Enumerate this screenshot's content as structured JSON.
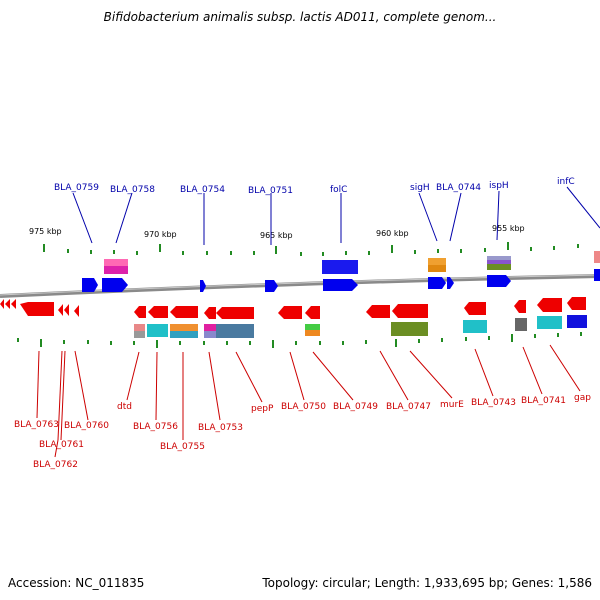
{
  "title": "Bifidobacterium animalis subsp. lactis AD011, complete genom...",
  "footer": {
    "accession": "Accession: NC_011835",
    "summary": "Topology: circular; Length: 1,933,695 bp; Genes: 1,586"
  },
  "colors": {
    "forward_gene": "#0000ee",
    "reverse_gene": "#ee0000",
    "forward_label": "#0000aa",
    "reverse_label": "#cc0000",
    "backbone": "#888888",
    "tick": "#228b22"
  },
  "scale_labels": [
    "975 kbp",
    "970 kbp",
    "965 kbp",
    "960 kbp",
    "955 kbp"
  ],
  "forward_labels": [
    "BLA_0759",
    "BLA_0758",
    "BLA_0754",
    "BLA_0751",
    "folC",
    "sigH",
    "BLA_0744",
    "ispH",
    "infC"
  ],
  "reverse_labels": [
    "BLA_0763",
    "BLA_0761",
    "BLA_0762",
    "BLA_0760",
    "dtd",
    "BLA_0756",
    "BLA_0755",
    "BLA_0753",
    "pepP",
    "BLA_0750",
    "BLA_0749",
    "BLA_0747",
    "murE",
    "BLA_0743",
    "BLA_0741",
    "gap"
  ]
}
